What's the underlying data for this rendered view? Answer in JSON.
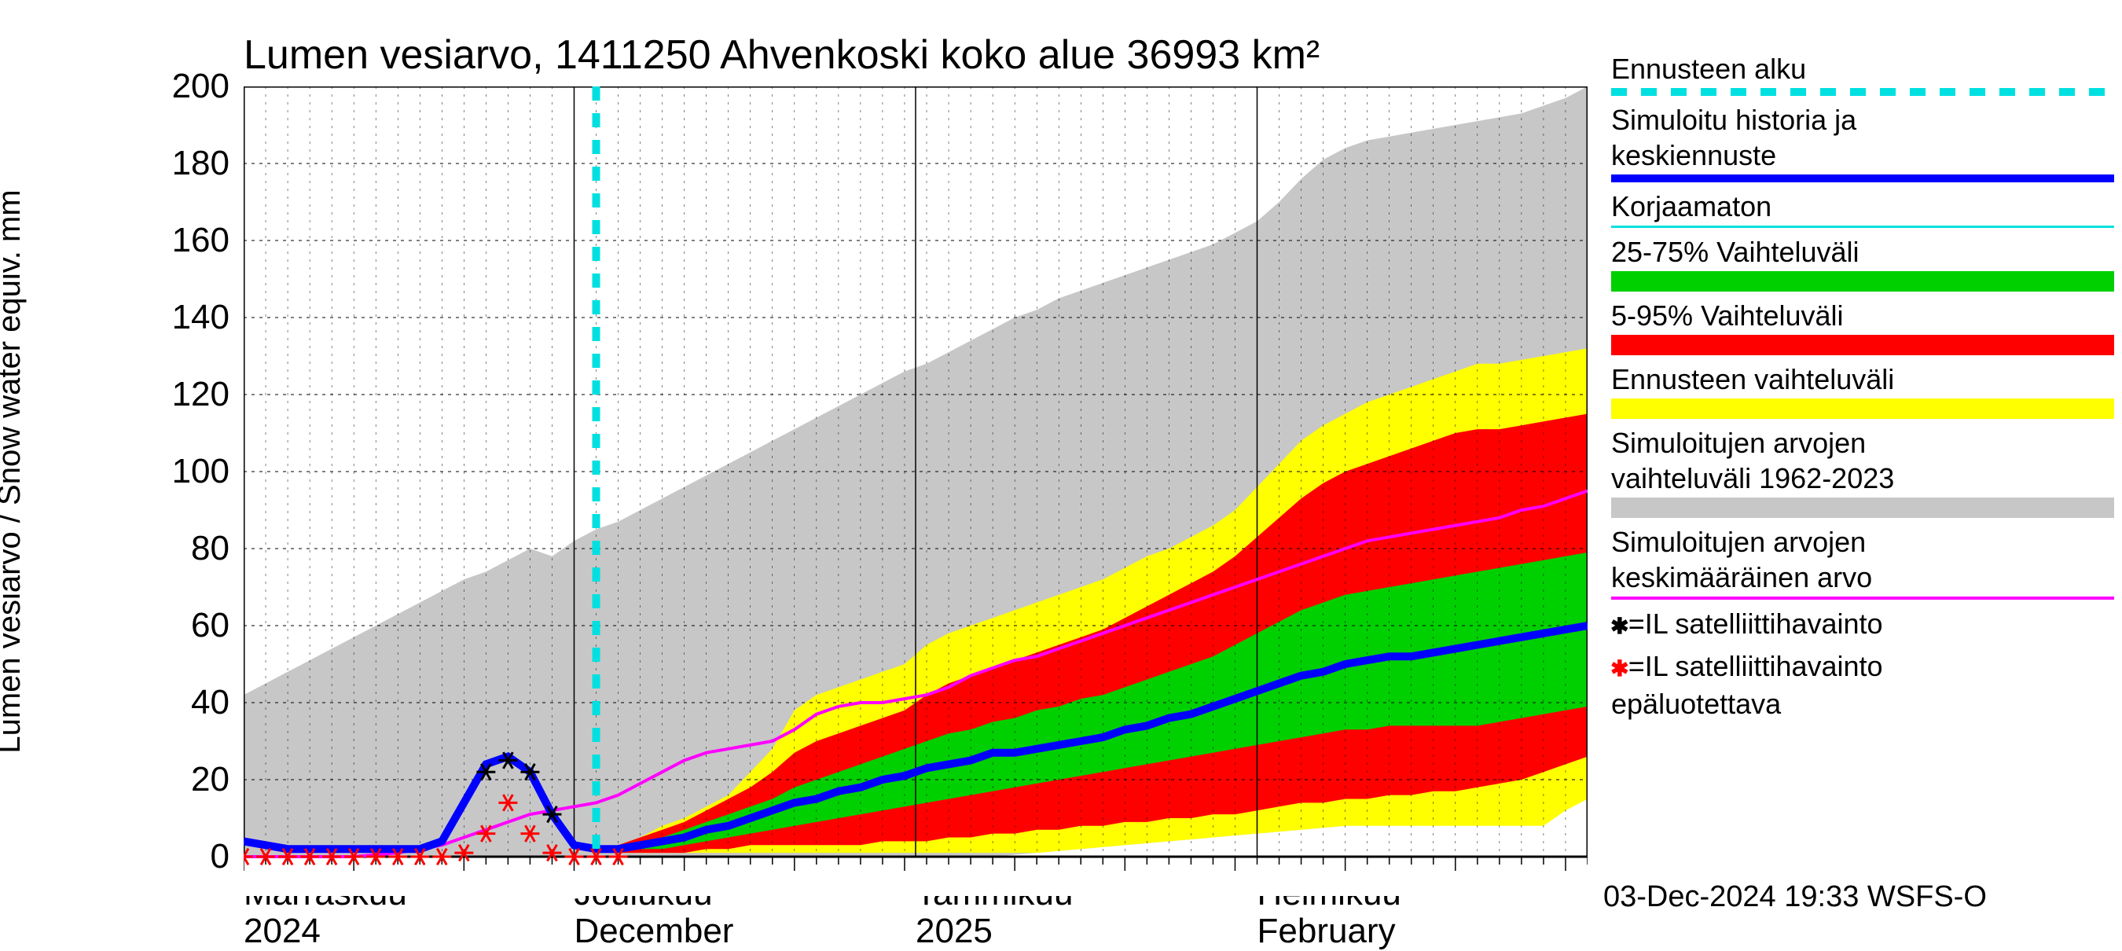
{
  "title": "Lumen vesiarvo, 1411250 Ahvenkoski koko alue 36993 km²",
  "ylabel": "Lumen vesiarvo / Snow water equiv.    mm",
  "footer": "03-Dec-2024 19:33 WSFS-O",
  "chart": {
    "type": "line-with-bands",
    "background_color": "#ffffff",
    "grid_color": "#000000",
    "ylim": [
      0,
      200
    ],
    "yticks": [
      0,
      20,
      40,
      60,
      80,
      100,
      120,
      140,
      160,
      180,
      200
    ],
    "ytick_labels": [
      "0",
      "20",
      "40",
      "60",
      "80",
      "100",
      "120",
      "140",
      "160",
      "180",
      "200"
    ],
    "x_days_total": 122,
    "x_month_starts_day": [
      0,
      30,
      61,
      92
    ],
    "x_month_labels_top": [
      "Marraskuu",
      "Joulukuu",
      "Tammikuu",
      "Helmikuu"
    ],
    "x_month_labels_bot": [
      "2024",
      "December",
      "2025",
      "February"
    ],
    "forecast_start_day": 32,
    "colors": {
      "hist_band": "#c7c7c7",
      "yellow_band": "#ffff00",
      "red_band": "#ff0000",
      "green_band": "#00d000",
      "mean_blue": "#0000ff",
      "hist_avg_magenta": "#ff00ff",
      "korjaamaton": "#00e0e0",
      "forecast_line": "#00e0e0",
      "sat_ok": "#000000",
      "sat_bad": "#ff0000"
    },
    "series_days": [
      0,
      2,
      4,
      6,
      8,
      10,
      12,
      14,
      16,
      18,
      20,
      22,
      24,
      26,
      28,
      30,
      32,
      34,
      36,
      38,
      40,
      42,
      44,
      46,
      48,
      50,
      52,
      54,
      56,
      58,
      60,
      62,
      64,
      66,
      68,
      70,
      72,
      74,
      76,
      78,
      80,
      82,
      84,
      86,
      88,
      90,
      92,
      94,
      96,
      98,
      100,
      102,
      104,
      106,
      108,
      110,
      112,
      114,
      116,
      118,
      120,
      122
    ],
    "hist_band_hi": [
      42,
      45,
      48,
      51,
      54,
      57,
      60,
      63,
      66,
      69,
      72,
      74,
      77,
      80,
      78,
      82,
      85,
      87,
      90,
      93,
      96,
      99,
      102,
      105,
      108,
      111,
      114,
      117,
      120,
      123,
      126,
      128,
      131,
      134,
      137,
      140,
      142,
      145,
      147,
      149,
      151,
      153,
      155,
      157,
      159,
      162,
      165,
      170,
      176,
      181,
      184,
      186,
      187,
      188,
      189,
      190,
      191,
      192,
      193,
      195,
      197,
      200
    ],
    "hist_band_lo": [
      0,
      0,
      0,
      0,
      0,
      0,
      0,
      0,
      0,
      0,
      0,
      0,
      0,
      0,
      0,
      0,
      0,
      0,
      0,
      0,
      0,
      0,
      0,
      0,
      0,
      0,
      0,
      0,
      0,
      0,
      0,
      0,
      0,
      0,
      0,
      0.5,
      1,
      1.5,
      2,
      2.5,
      3,
      3.5,
      4,
      4.5,
      5,
      5.5,
      6,
      6.5,
      7,
      7.5,
      8,
      8.5,
      9,
      9.5,
      10,
      10.5,
      11,
      11.5,
      12,
      13,
      14,
      15
    ],
    "yellow_hi": [
      null,
      null,
      null,
      null,
      null,
      null,
      null,
      null,
      null,
      null,
      null,
      null,
      null,
      null,
      null,
      null,
      2,
      3,
      5,
      8,
      10,
      13,
      16,
      22,
      28,
      38,
      42,
      44,
      46,
      48,
      50,
      55,
      58,
      60,
      62,
      64,
      66,
      68,
      70,
      72,
      75,
      78,
      80,
      83,
      86,
      90,
      96,
      102,
      108,
      112,
      115,
      118,
      120,
      122,
      124,
      126,
      128,
      128,
      129,
      130,
      131,
      132
    ],
    "yellow_lo": [
      null,
      null,
      null,
      null,
      null,
      null,
      null,
      null,
      null,
      null,
      null,
      null,
      null,
      null,
      null,
      null,
      1,
      1,
      1,
      1,
      1,
      1,
      1,
      1,
      1,
      1,
      1,
      1,
      1,
      1,
      1,
      1,
      1,
      1,
      1,
      1,
      1,
      1.5,
      2,
      2.5,
      3,
      3.5,
      4,
      4.5,
      5,
      5.5,
      6,
      6.5,
      7,
      7.5,
      8,
      8,
      8,
      8,
      8,
      8,
      8,
      8,
      8,
      8,
      12,
      15
    ],
    "red_hi": [
      null,
      null,
      null,
      null,
      null,
      null,
      null,
      null,
      null,
      null,
      null,
      null,
      null,
      null,
      null,
      null,
      2,
      3,
      5,
      7,
      9,
      12,
      15,
      18,
      22,
      27,
      30,
      32,
      34,
      36,
      38,
      42,
      45,
      47,
      49,
      51,
      53,
      55,
      57,
      59,
      62,
      65,
      68,
      71,
      74,
      78,
      83,
      88,
      93,
      97,
      100,
      102,
      104,
      106,
      108,
      110,
      111,
      111,
      112,
      113,
      114,
      115
    ],
    "red_lo": [
      null,
      null,
      null,
      null,
      null,
      null,
      null,
      null,
      null,
      null,
      null,
      null,
      null,
      null,
      null,
      null,
      1,
      1,
      1,
      1,
      1,
      2,
      2,
      3,
      3,
      3,
      3,
      3,
      3,
      4,
      4,
      4,
      5,
      5,
      6,
      6,
      7,
      7,
      8,
      8,
      9,
      9,
      10,
      10,
      11,
      11,
      12,
      13,
      14,
      14,
      15,
      15,
      16,
      16,
      17,
      17,
      18,
      19,
      20,
      22,
      24,
      26
    ],
    "green_hi": [
      null,
      null,
      null,
      null,
      null,
      null,
      null,
      null,
      null,
      null,
      null,
      null,
      null,
      null,
      null,
      null,
      2,
      3,
      4,
      5,
      7,
      9,
      11,
      13,
      15,
      18,
      20,
      22,
      24,
      26,
      28,
      30,
      32,
      33,
      35,
      36,
      38,
      39,
      41,
      42,
      44,
      46,
      48,
      50,
      52,
      55,
      58,
      61,
      64,
      66,
      68,
      69,
      70,
      71,
      72,
      73,
      74,
      75,
      76,
      77,
      78,
      79
    ],
    "green_lo": [
      null,
      null,
      null,
      null,
      null,
      null,
      null,
      null,
      null,
      null,
      null,
      null,
      null,
      null,
      null,
      null,
      1,
      1,
      2,
      2,
      3,
      4,
      5,
      6,
      7,
      8,
      9,
      10,
      11,
      12,
      13,
      14,
      15,
      16,
      17,
      18,
      19,
      20,
      21,
      22,
      23,
      24,
      25,
      26,
      27,
      28,
      29,
      30,
      31,
      32,
      33,
      33,
      34,
      34,
      34,
      34,
      34,
      35,
      36,
      37,
      38,
      39
    ],
    "mean_blue_vals": [
      4,
      3,
      2,
      2,
      2,
      2,
      2,
      2,
      2,
      4,
      14,
      24,
      26,
      22,
      11,
      3,
      2,
      2,
      3,
      4,
      5,
      7,
      8,
      10,
      12,
      14,
      15,
      17,
      18,
      20,
      21,
      23,
      24,
      25,
      27,
      27,
      28,
      29,
      30,
      31,
      33,
      34,
      36,
      37,
      39,
      41,
      43,
      45,
      47,
      48,
      50,
      51,
      52,
      52,
      53,
      54,
      55,
      56,
      57,
      58,
      59,
      60
    ],
    "hist_avg_vals": [
      0,
      0,
      0,
      0,
      0,
      0,
      0.5,
      1,
      2,
      3,
      5,
      7,
      9,
      11,
      12,
      13,
      14,
      16,
      19,
      22,
      25,
      27,
      28,
      29,
      30,
      33,
      37,
      39,
      40,
      40,
      41,
      42,
      44,
      47,
      49,
      51,
      52,
      54,
      56,
      58,
      60,
      62,
      64,
      66,
      68,
      70,
      72,
      74,
      76,
      78,
      80,
      82,
      83,
      84,
      85,
      86,
      87,
      88,
      90,
      91,
      93,
      95
    ],
    "sat_ok_points": [
      {
        "d": 22,
        "v": 22
      },
      {
        "d": 24,
        "v": 25
      },
      {
        "d": 26,
        "v": 22
      },
      {
        "d": 28,
        "v": 11
      }
    ],
    "sat_bad_points": [
      {
        "d": 0,
        "v": 0
      },
      {
        "d": 2,
        "v": 0
      },
      {
        "d": 4,
        "v": 0
      },
      {
        "d": 6,
        "v": 0
      },
      {
        "d": 8,
        "v": 0
      },
      {
        "d": 10,
        "v": 0
      },
      {
        "d": 12,
        "v": 0
      },
      {
        "d": 14,
        "v": 0
      },
      {
        "d": 16,
        "v": 0
      },
      {
        "d": 18,
        "v": 0
      },
      {
        "d": 20,
        "v": 1
      },
      {
        "d": 22,
        "v": 6
      },
      {
        "d": 24,
        "v": 14
      },
      {
        "d": 26,
        "v": 6
      },
      {
        "d": 28,
        "v": 1
      },
      {
        "d": 30,
        "v": 0
      },
      {
        "d": 32,
        "v": 0
      },
      {
        "d": 34,
        "v": 0
      }
    ]
  },
  "legend": {
    "entries": [
      {
        "key": "forecast_start",
        "label": "Ennusteen alku",
        "type": "dashed",
        "color": "#00e0e0"
      },
      {
        "key": "mean",
        "label": "Simuloitu historia ja\nkeskiennuste",
        "type": "line",
        "color": "#0000ff",
        "thick": 10
      },
      {
        "key": "korj",
        "label": "Korjaamaton",
        "type": "line",
        "color": "#00e0e0",
        "thick": 3
      },
      {
        "key": "p25_75",
        "label": "25-75% Vaihteluväli",
        "type": "band",
        "color": "#00d000"
      },
      {
        "key": "p5_95",
        "label": "5-95% Vaihteluväli",
        "type": "band",
        "color": "#ff0000"
      },
      {
        "key": "full",
        "label": "Ennusteen vaihteluväli",
        "type": "band",
        "color": "#ffff00"
      },
      {
        "key": "hist_rng",
        "label": "Simuloitujen arvojen\nvaihteluväli 1962-2023",
        "type": "band",
        "color": "#c7c7c7"
      },
      {
        "key": "hist_avg",
        "label": "Simuloitujen arvojen\nkeskimääräinen arvo",
        "type": "line",
        "color": "#ff00ff",
        "thick": 4
      }
    ],
    "text_entries": [
      {
        "key": "sat_ok",
        "marker": "✱",
        "marker_color": "#000000",
        "label": "=IL satelliittihavainto"
      },
      {
        "key": "sat_bad",
        "marker": "✱",
        "marker_color": "#ff0000",
        "label": "=IL satelliittihavainto\nepäluotettava"
      }
    ]
  }
}
